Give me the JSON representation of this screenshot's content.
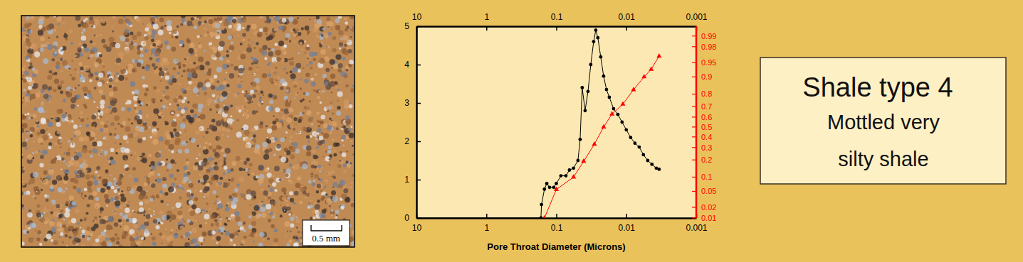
{
  "chart_data": {
    "type": "line",
    "x_label": "Pore Throat Diameter (Microns)",
    "log": "x",
    "xlim": [
      10,
      0.001
    ],
    "xticks": [
      10,
      1,
      0.1,
      0.01,
      0.001
    ],
    "ylim": [
      0,
      5
    ],
    "yticks": [
      0,
      1,
      2,
      3,
      4,
      5
    ],
    "y2lim": [
      0.01,
      0.995
    ],
    "y2ticks": [
      0.01,
      0.02,
      0.05,
      0.1,
      0.2,
      0.3,
      0.4,
      0.5,
      0.6,
      0.7,
      0.8,
      0.9,
      0.95,
      0.98,
      0.99
    ],
    "series": [
      {
        "color": "#000000",
        "marker": "circle",
        "x": [
          10,
          0.166,
          0.163,
          0.148,
          0.137,
          0.125,
          0.109,
          0.1,
          0.0861,
          0.0731,
          0.065,
          0.0568,
          0.0491,
          0.0457,
          0.0427,
          0.0388,
          0.0353,
          0.0322,
          0.0293,
          0.0273,
          0.0255,
          0.0232,
          0.0211,
          0.0192,
          0.0175,
          0.0152,
          0.0132,
          0.0115,
          0.01,
          0.00867,
          0.00753,
          0.00654,
          0.00569,
          0.00494,
          0.0043,
          0.00373,
          0.0034
        ],
        "values": [
          0,
          0,
          0.35,
          0.75,
          0.9,
          0.8,
          0.8,
          0.9,
          1.1,
          1.1,
          1.25,
          1.3,
          1.5,
          2.05,
          3.4,
          2.8,
          3.3,
          4.0,
          4.6,
          4.9,
          4.7,
          4.2,
          3.7,
          3.35,
          3.15,
          2.85,
          2.7,
          2.5,
          2.3,
          2.1,
          1.95,
          1.85,
          1.65,
          1.5,
          1.4,
          1.3,
          1.27
        ]
      },
      {
        "color": "#ff0000",
        "marker": "triangle",
        "axis": "y2",
        "x": [
          0.148,
          0.1,
          0.0568,
          0.0407,
          0.0286,
          0.0211,
          0.016,
          0.0112,
          0.00788,
          0.00556,
          0.0044,
          0.0034
        ],
        "values": [
          0.01,
          0.055,
          0.1,
          0.19,
          0.33,
          0.5,
          0.63,
          0.72,
          0.83,
          0.9,
          0.93,
          0.965
        ]
      }
    ]
  },
  "photo": {
    "scale_bar": "0.5 mm"
  },
  "label_box": {
    "title": "Shale type 4",
    "lines": [
      "Mottled very",
      "silty shale"
    ]
  }
}
